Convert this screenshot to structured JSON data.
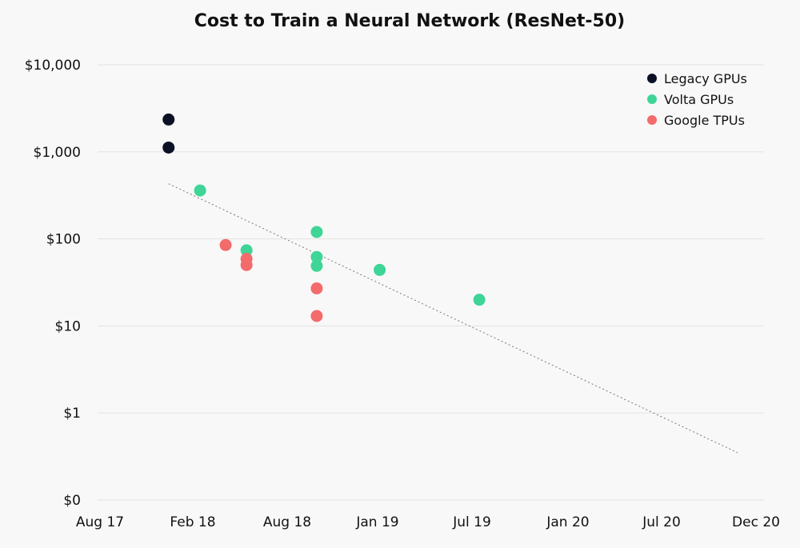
{
  "chart_data": {
    "type": "scatter",
    "title": "Cost to Train a Neural Network (ResNet-50)",
    "xlabel": "",
    "ylabel": "",
    "y_scale": "log",
    "x_ticks": [
      "Aug 17",
      "Feb 18",
      "Aug 18",
      "Jan 19",
      "Jul 19",
      "Jan 20",
      "Jul 20",
      "Dec 20"
    ],
    "y_ticks": [
      {
        "label": "$10,000",
        "value": 10000
      },
      {
        "label": "$1,000",
        "value": 1000
      },
      {
        "label": "$100",
        "value": 100
      },
      {
        "label": "$10",
        "value": 10
      },
      {
        "label": "$1",
        "value": 1
      },
      {
        "label": "$0",
        "value": 0.1
      }
    ],
    "grid": true,
    "legend_position": "top-right",
    "series": [
      {
        "name": "Legacy GPUs",
        "color": "#0d1126",
        "points": [
          {
            "x": "2017-12-15",
            "y": 2350
          },
          {
            "x": "2017-12-15",
            "y": 1120
          }
        ]
      },
      {
        "name": "Volta GPUs",
        "color": "#3ed596",
        "points": [
          {
            "x": "2018-02-15",
            "y": 360
          },
          {
            "x": "2018-05-15",
            "y": 74
          },
          {
            "x": "2018-09-20",
            "y": 120
          },
          {
            "x": "2018-09-20",
            "y": 62
          },
          {
            "x": "2018-09-20",
            "y": 49
          },
          {
            "x": "2019-01-05",
            "y": 44
          },
          {
            "x": "2019-07-15",
            "y": 20
          }
        ]
      },
      {
        "name": "Google TPUs",
        "color": "#f36b6b",
        "points": [
          {
            "x": "2018-04-05",
            "y": 85
          },
          {
            "x": "2018-05-15",
            "y": 59
          },
          {
            "x": "2018-05-15",
            "y": 50
          },
          {
            "x": "2018-09-20",
            "y": 27
          },
          {
            "x": "2018-09-20",
            "y": 13
          }
        ]
      }
    ],
    "trendline": {
      "style": "dotted",
      "color": "#777777",
      "points": [
        {
          "x": "2017-12-15",
          "y": 430
        },
        {
          "x": "2020-11-01",
          "y": 0.35
        }
      ]
    }
  }
}
